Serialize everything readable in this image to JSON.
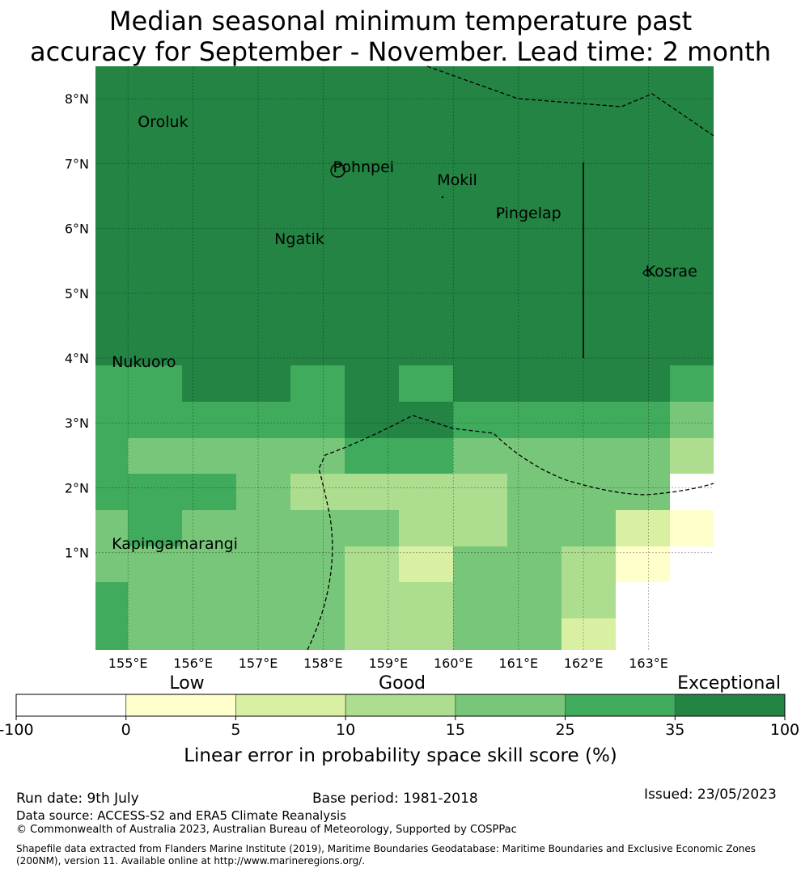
{
  "title": {
    "line1": "Median seasonal minimum temperature past",
    "line2": "accuracy for September - November. Lead time: 2 month"
  },
  "map": {
    "lon_range": [
      154.5,
      164.0
    ],
    "lat_range": [
      -0.5,
      8.5
    ],
    "lon_ticks": [
      "155°E",
      "156°E",
      "157°E",
      "158°E",
      "159°E",
      "160°E",
      "161°E",
      "162°E",
      "163°E"
    ],
    "lat_ticks": [
      "1°N",
      "2°N",
      "3°N",
      "4°N",
      "5°N",
      "6°N",
      "7°N",
      "8°N"
    ],
    "places": [
      {
        "name": "Oroluk",
        "lon": 155.2,
        "lat": 7.6
      },
      {
        "name": "Pohnpei",
        "lon": 158.2,
        "lat": 6.9
      },
      {
        "name": "Mokil",
        "lon": 159.8,
        "lat": 6.7
      },
      {
        "name": "Pingelap",
        "lon": 160.7,
        "lat": 6.2
      },
      {
        "name": "Ngatik",
        "lon": 157.3,
        "lat": 5.8
      },
      {
        "name": "Kosrae",
        "lon": 163.0,
        "lat": 5.3
      },
      {
        "name": "Nukuoro",
        "lon": 154.8,
        "lat": 3.9
      },
      {
        "name": "Kapingamarangi",
        "lon": 154.8,
        "lat": 1.1
      }
    ]
  },
  "colorbar": {
    "categories": [
      "Low",
      "Good",
      "Exceptional"
    ],
    "ticks": [
      "-100",
      "0",
      "5",
      "10",
      "15",
      "25",
      "35",
      "100"
    ],
    "colors": [
      "#ffffff",
      "#ffffcc",
      "#d9f0a3",
      "#addd8e",
      "#78c679",
      "#41ab5d",
      "#238443"
    ],
    "label": "Linear error in probability space skill score (%)"
  },
  "footer": {
    "run_date": "Run date: 9th July",
    "base_period": "Base period: 1981-2018",
    "issued": "Issued: 23/05/2023",
    "data_source": "Data source: ACCESS-S2 and ERA5 Climate Reanalysis",
    "copyright": "© Commonwealth of Australia 2023, Australian Bureau of Meteorology, Supported by COSPPac",
    "shapefile1": "Shapefile data extracted from Flanders Marine Institute (2019), Maritime Boundaries Geodatabase: Maritime Boundaries and Exclusive Economic Zones",
    "shapefile2": "(200NM), version 11. Available online at http://www.marineregions.org/."
  }
}
